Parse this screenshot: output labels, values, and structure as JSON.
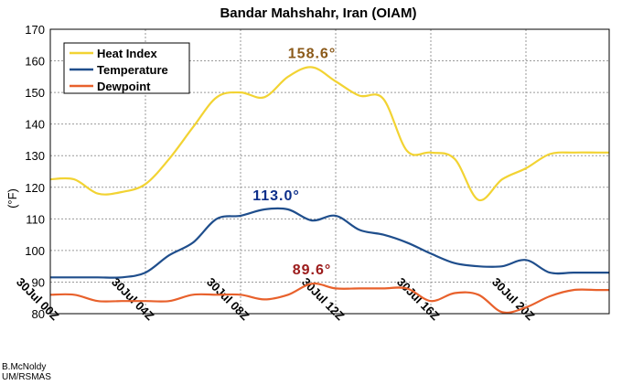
{
  "chart_data": {
    "type": "line",
    "title": "Bandar Mahshahr, Iran (OIAM)",
    "ylabel": "(°F)",
    "ylim": [
      80,
      170
    ],
    "yticks": [
      80,
      90,
      100,
      110,
      120,
      130,
      140,
      150,
      160,
      170
    ],
    "xlim": [
      0,
      23.5
    ],
    "xtick_positions": [
      0,
      4,
      8,
      12,
      16,
      20
    ],
    "xtick_labels": [
      "30Jul 00Z",
      "30Jul 04Z",
      "30Jul 08Z",
      "30Jul 12Z",
      "30Jul 16Z",
      "30Jul 20Z"
    ],
    "grid": true,
    "legend_position": "top-left",
    "series": [
      {
        "name": "Heat Index",
        "color": "#f2d333",
        "x": [
          0,
          1,
          2,
          3,
          4,
          5,
          6,
          7,
          8,
          9,
          10,
          11,
          12,
          13,
          14,
          15,
          16,
          17,
          18,
          19,
          20,
          21,
          22,
          23,
          23.5
        ],
        "y": [
          122.5,
          122.5,
          118,
          118.5,
          121,
          129,
          139,
          148.5,
          150,
          148.5,
          155,
          158,
          153.5,
          149,
          148,
          131.5,
          131,
          129,
          116,
          122.5,
          126,
          130.5,
          131,
          131,
          131
        ],
        "peak_label": "158.6°",
        "peak_color": "#8b5a1a",
        "peak_x": 11
      },
      {
        "name": "Temperature",
        "color": "#1f4e8c",
        "x": [
          0,
          1,
          2,
          3,
          4,
          5,
          6,
          7,
          8,
          9,
          10,
          11,
          12,
          13,
          14,
          15,
          16,
          17,
          18,
          19,
          20,
          21,
          22,
          23,
          23.5
        ],
        "y": [
          91.5,
          91.5,
          91.5,
          91.5,
          93,
          98.5,
          102.5,
          110,
          111,
          113,
          113,
          109.5,
          111,
          106.5,
          105,
          102.5,
          99,
          96,
          95,
          95,
          97,
          93,
          93,
          93,
          93
        ],
        "peak_label": "113.0°",
        "peak_color": "#0d2f8a",
        "peak_x": 9.5
      },
      {
        "name": "Dewpoint",
        "color": "#e8612c",
        "x": [
          0,
          1,
          2,
          3,
          4,
          5,
          6,
          7,
          8,
          9,
          10,
          11,
          12,
          13,
          14,
          15,
          16,
          17,
          18,
          19,
          20,
          21,
          22,
          23,
          23.5
        ],
        "y": [
          86,
          86,
          84,
          84,
          84,
          84,
          86,
          86,
          86,
          84.5,
          86,
          89.5,
          88,
          88,
          88,
          88,
          84,
          86.5,
          86,
          80.5,
          82,
          85.5,
          87.5,
          87.5,
          87.5
        ],
        "peak_label": "89.6°",
        "peak_color": "#9b1a1a",
        "peak_x": 11
      }
    ]
  },
  "credit": {
    "line1": "B.McNoldy",
    "line2": "UM/RSMAS"
  }
}
